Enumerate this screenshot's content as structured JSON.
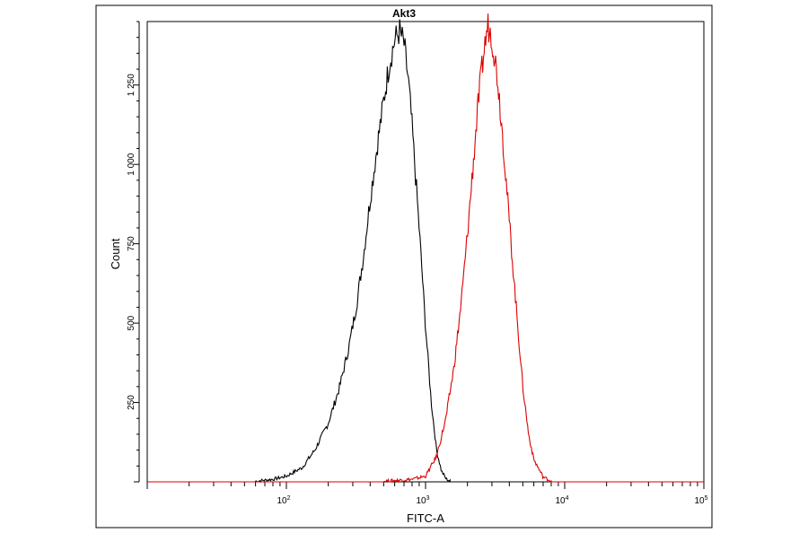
{
  "chart_data": {
    "type": "line",
    "title": "Akt3",
    "xlabel": "FITC-A",
    "ylabel": "Count",
    "x_scale": "log",
    "xlim": [
      10,
      100000
    ],
    "ylim": [
      0,
      1450
    ],
    "x_ticks": [
      {
        "base": "10",
        "exp": "2",
        "value": 100
      },
      {
        "base": "10",
        "exp": "3",
        "value": 1000
      },
      {
        "base": "10",
        "exp": "4",
        "value": 10000
      },
      {
        "base": "10",
        "exp": "5",
        "value": 100000
      }
    ],
    "y_ticks": [
      {
        "label": "250",
        "value": 250
      },
      {
        "label": "500",
        "value": 500
      },
      {
        "label": "750",
        "value": 750
      },
      {
        "label": "1 000",
        "value": 1000
      },
      {
        "label": "1 250",
        "value": 1250
      }
    ],
    "grid": false,
    "series": [
      {
        "color": "#000000",
        "x": [
          60,
          80,
          100,
          130,
          160,
          200,
          240,
          280,
          320,
          360,
          400,
          450,
          500,
          550,
          600,
          650,
          700,
          750,
          800,
          900,
          1000,
          1100,
          1200,
          1300,
          1400,
          1500
        ],
        "y": [
          2,
          8,
          18,
          45,
          100,
          185,
          295,
          420,
          560,
          720,
          890,
          1060,
          1200,
          1320,
          1390,
          1420,
          1380,
          1270,
          1120,
          800,
          490,
          250,
          100,
          35,
          10,
          2
        ]
      },
      {
        "color": "#dd0000",
        "x": [
          500,
          800,
          1000,
          1200,
          1400,
          1600,
          1800,
          2000,
          2200,
          2400,
          2600,
          2800,
          3000,
          3300,
          3600,
          4000,
          4500,
          5000,
          5500,
          6000,
          7000,
          8000
        ],
        "y": [
          2,
          8,
          18,
          80,
          200,
          360,
          560,
          780,
          1000,
          1200,
          1340,
          1440,
          1400,
          1270,
          1080,
          820,
          540,
          300,
          150,
          70,
          15,
          3
        ]
      }
    ]
  }
}
